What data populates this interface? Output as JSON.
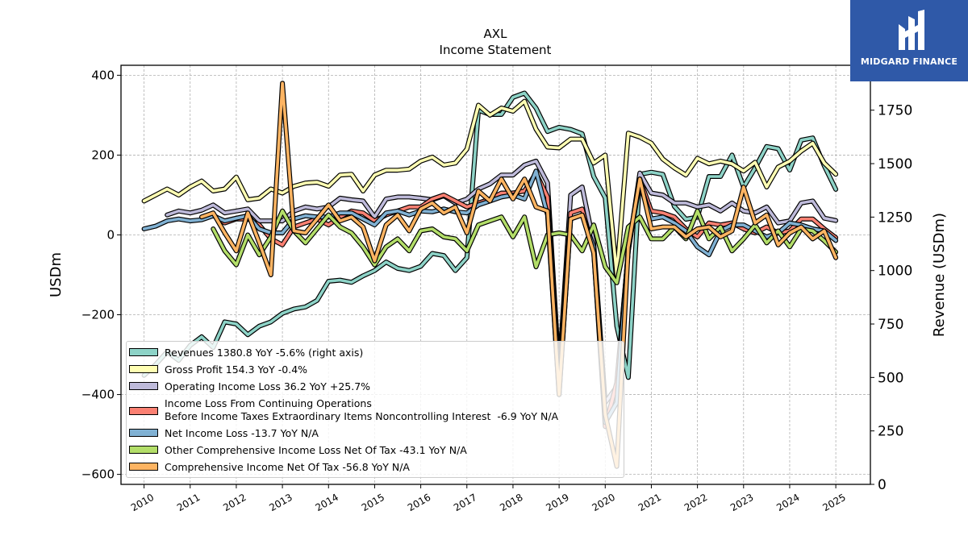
{
  "chart_data": {
    "type": "line",
    "title": "AXL",
    "subtitle": "Income Statement",
    "ylabel": "USDm",
    "ylabel_right": "Revenue (USDm)",
    "ylim": [
      -625,
      425
    ],
    "ylim_right": [
      0,
      1960
    ],
    "yticks": [
      400,
      200,
      0,
      -200,
      -400,
      -600
    ],
    "yticks_right": [
      1750,
      1500,
      1250,
      1000,
      750,
      500,
      250,
      0
    ],
    "xlim": [
      2009.5,
      2025.75
    ],
    "xticks": [
      "2010",
      "2011",
      "2012",
      "2013",
      "2014",
      "2015",
      "2016",
      "2017",
      "2018",
      "2019",
      "2020",
      "2021",
      "2022",
      "2023",
      "2024",
      "2025"
    ],
    "grid": true,
    "legend_position": "lower-left",
    "series": [
      {
        "name": "Revenues  1380.8 YoY -5.6% (right axis)",
        "color": "#8dd3c7",
        "axis": "right",
        "x": [
          2010.0,
          2010.25,
          2010.5,
          2010.75,
          2011.0,
          2011.25,
          2011.5,
          2011.75,
          2012.0,
          2012.25,
          2012.5,
          2012.75,
          2013.0,
          2013.25,
          2013.5,
          2013.75,
          2014.0,
          2014.25,
          2014.5,
          2014.75,
          2015.0,
          2015.25,
          2015.5,
          2015.75,
          2016.0,
          2016.25,
          2016.5,
          2016.75,
          2017.0,
          2017.25,
          2017.5,
          2017.75,
          2018.0,
          2018.25,
          2018.5,
          2018.75,
          2019.0,
          2019.25,
          2019.5,
          2019.75,
          2020.0,
          2020.25,
          2020.5,
          2020.75,
          2021.0,
          2021.25,
          2021.5,
          2021.75,
          2022.0,
          2022.25,
          2022.5,
          2022.75,
          2023.0,
          2023.25,
          2023.5,
          2023.75,
          2024.0,
          2024.25,
          2024.5,
          2024.75,
          2025.0
        ],
        "y": [
          510,
          560,
          620,
          580,
          650,
          690,
          640,
          760,
          750,
          700,
          740,
          760,
          800,
          820,
          830,
          860,
          950,
          955,
          945,
          975,
          1000,
          1040,
          1010,
          1000,
          1020,
          1080,
          1070,
          1000,
          1060,
          1750,
          1730,
          1730,
          1810,
          1830,
          1760,
          1650,
          1670,
          1660,
          1640,
          1440,
          1340,
          740,
          500,
          1450,
          1460,
          1450,
          1300,
          1240,
          1250,
          1440,
          1440,
          1540,
          1390,
          1480,
          1580,
          1570,
          1470,
          1610,
          1620,
          1490,
          1380
        ]
      },
      {
        "name": "Gross Profit  154.3 YoY -0.4%",
        "color": "#ffffb3",
        "axis": "left",
        "x": [
          2010.0,
          2010.25,
          2010.5,
          2010.75,
          2011.0,
          2011.25,
          2011.5,
          2011.75,
          2012.0,
          2012.25,
          2012.5,
          2012.75,
          2013.0,
          2013.25,
          2013.5,
          2013.75,
          2014.0,
          2014.25,
          2014.5,
          2014.75,
          2015.0,
          2015.25,
          2015.5,
          2015.75,
          2016.0,
          2016.25,
          2016.5,
          2016.75,
          2017.0,
          2017.25,
          2017.5,
          2017.75,
          2018.0,
          2018.25,
          2018.5,
          2018.75,
          2019.0,
          2019.25,
          2019.5,
          2019.75,
          2020.0,
          2020.25,
          2020.5,
          2020.75,
          2021.0,
          2021.25,
          2021.5,
          2021.75,
          2022.0,
          2022.25,
          2022.5,
          2022.75,
          2023.0,
          2023.25,
          2023.5,
          2023.75,
          2024.0,
          2024.25,
          2024.5,
          2024.75,
          2025.0
        ],
        "y": [
          85,
          100,
          115,
          100,
          120,
          135,
          110,
          115,
          145,
          88,
          92,
          115,
          105,
          122,
          130,
          132,
          122,
          150,
          152,
          110,
          150,
          162,
          162,
          165,
          185,
          195,
          175,
          180,
          215,
          325,
          300,
          318,
          310,
          335,
          265,
          220,
          218,
          240,
          240,
          180,
          200,
          -100,
          255,
          245,
          230,
          190,
          168,
          150,
          192,
          178,
          185,
          178,
          160,
          182,
          120,
          170,
          185,
          210,
          230,
          180,
          152
        ]
      },
      {
        "name": "Operating Income Loss  36.2 YoY +25.7%",
        "color": "#bebada",
        "axis": "left",
        "x": [
          2010.5,
          2010.75,
          2011.0,
          2011.25,
          2011.5,
          2011.75,
          2012.0,
          2012.25,
          2012.5,
          2012.75,
          2013.0,
          2013.25,
          2013.5,
          2013.75,
          2014.0,
          2014.25,
          2014.5,
          2014.75,
          2015.0,
          2015.25,
          2015.5,
          2015.75,
          2016.0,
          2016.25,
          2016.5,
          2016.75,
          2017.0,
          2017.25,
          2017.5,
          2017.75,
          2018.0,
          2018.25,
          2018.5,
          2018.75,
          2019.0,
          2019.25,
          2019.5,
          2019.75,
          2020.0,
          2020.25,
          2020.5,
          2020.75,
          2021.0,
          2021.25,
          2021.5,
          2021.75,
          2022.0,
          2022.25,
          2022.5,
          2022.75,
          2023.0,
          2023.25,
          2023.5,
          2023.75,
          2024.0,
          2024.25,
          2024.5,
          2024.75,
          2025.0
        ],
        "y": [
          50,
          60,
          55,
          62,
          75,
          55,
          60,
          65,
          35,
          35,
          35,
          60,
          70,
          65,
          70,
          92,
          88,
          85,
          45,
          90,
          95,
          95,
          92,
          88,
          98,
          80,
          90,
          115,
          128,
          150,
          150,
          175,
          185,
          130,
          -345,
          100,
          120,
          -20,
          -420,
          -380,
          -40,
          155,
          105,
          100,
          80,
          80,
          70,
          75,
          60,
          80,
          60,
          55,
          70,
          30,
          35,
          80,
          85,
          42,
          36
        ]
      },
      {
        "name": "Income Loss From Continuing Operations\nBefore Income Taxes Extraordinary Items Noncontrolling Interest  -6.9 YoY N/A",
        "color": "#fb8072",
        "axis": "left",
        "x": [
          2011.5,
          2011.75,
          2012.0,
          2012.25,
          2012.5,
          2012.75,
          2013.0,
          2013.25,
          2013.5,
          2013.75,
          2014.0,
          2014.25,
          2014.5,
          2014.75,
          2015.0,
          2015.25,
          2015.5,
          2015.75,
          2016.0,
          2016.25,
          2016.5,
          2016.75,
          2017.0,
          2017.25,
          2017.5,
          2017.75,
          2018.0,
          2018.25,
          2018.5,
          2018.75,
          2019.0,
          2019.25,
          2019.5,
          2019.75,
          2020.0,
          2020.25,
          2020.5,
          2020.75,
          2021.0,
          2021.25,
          2021.5,
          2021.75,
          2022.0,
          2022.25,
          2022.5,
          2022.75,
          2023.0,
          2023.25,
          2023.5,
          2023.75,
          2024.0,
          2024.25,
          2024.5,
          2024.75,
          2025.0
        ],
        "y": [
          50,
          30,
          40,
          40,
          25,
          -10,
          -25,
          20,
          30,
          40,
          25,
          45,
          60,
          55,
          35,
          50,
          60,
          70,
          70,
          90,
          100,
          85,
          70,
          80,
          90,
          105,
          105,
          110,
          155,
          95,
          -360,
          55,
          65,
          -40,
          -480,
          -370,
          -40,
          140,
          60,
          55,
          45,
          15,
          -5,
          30,
          25,
          30,
          15,
          5,
          20,
          5,
          10,
          40,
          40,
          15,
          -7
        ]
      },
      {
        "name": "Net Income Loss  -13.7 YoY N/A",
        "color": "#80b1d3",
        "axis": "left",
        "x": [
          2010.0,
          2010.25,
          2010.5,
          2010.75,
          2011.0,
          2011.25,
          2011.5,
          2011.75,
          2012.0,
          2012.25,
          2012.5,
          2012.75,
          2013.0,
          2013.25,
          2013.5,
          2013.75,
          2014.0,
          2014.25,
          2014.5,
          2014.75,
          2015.0,
          2015.25,
          2015.5,
          2015.75,
          2016.0,
          2016.25,
          2016.5,
          2016.75,
          2017.0,
          2017.25,
          2017.5,
          2017.75,
          2018.0,
          2018.25,
          2018.5,
          2018.75,
          2019.0,
          2019.25,
          2019.5,
          2019.75,
          2020.0,
          2020.25,
          2020.5,
          2020.75,
          2021.0,
          2021.25,
          2021.5,
          2021.75,
          2022.0,
          2022.25,
          2022.5,
          2022.75,
          2023.0,
          2023.25,
          2023.5,
          2023.75,
          2024.0,
          2024.25,
          2024.5,
          2024.75,
          2025.0
        ],
        "y": [
          15,
          22,
          35,
          40,
          35,
          38,
          48,
          35,
          42,
          48,
          15,
          5,
          5,
          40,
          48,
          45,
          45,
          55,
          55,
          40,
          25,
          55,
          60,
          50,
          60,
          58,
          65,
          58,
          55,
          75,
          85,
          95,
          100,
          90,
          160,
          50,
          -400,
          40,
          50,
          -30,
          -470,
          -420,
          -30,
          130,
          40,
          45,
          30,
          10,
          -30,
          -50,
          10,
          25,
          25,
          10,
          -5,
          5,
          30,
          25,
          15,
          10,
          -14
        ]
      },
      {
        "name": "Other Comprehensive Income Loss Net Of Tax  -43.1 YoY N/A",
        "color": "#b3de69",
        "axis": "left",
        "x": [
          2011.5,
          2011.75,
          2012.0,
          2012.25,
          2012.5,
          2012.75,
          2013.0,
          2013.25,
          2013.5,
          2013.75,
          2014.0,
          2014.25,
          2014.5,
          2014.75,
          2015.0,
          2015.25,
          2015.5,
          2015.75,
          2016.0,
          2016.25,
          2016.5,
          2016.75,
          2017.0,
          2017.25,
          2017.5,
          2017.75,
          2018.0,
          2018.25,
          2018.5,
          2018.75,
          2019.0,
          2019.25,
          2019.5,
          2019.75,
          2020.0,
          2020.25,
          2020.5,
          2020.75,
          2021.0,
          2021.25,
          2021.5,
          2021.75,
          2022.0,
          2022.25,
          2022.5,
          2022.75,
          2023.0,
          2023.25,
          2023.5,
          2023.75,
          2024.0,
          2024.25,
          2024.5,
          2024.75,
          2025.0
        ],
        "y": [
          15,
          -40,
          -75,
          0,
          -50,
          -5,
          60,
          10,
          -20,
          15,
          50,
          20,
          5,
          -30,
          -75,
          -30,
          -10,
          -40,
          10,
          15,
          -5,
          -10,
          -40,
          25,
          35,
          45,
          -5,
          45,
          -80,
          0,
          5,
          0,
          -40,
          25,
          -80,
          -120,
          20,
          45,
          -10,
          -10,
          20,
          -10,
          60,
          -10,
          20,
          -40,
          -10,
          25,
          -20,
          10,
          -30,
          15,
          10,
          -15,
          -43
        ]
      },
      {
        "name": "Comprehensive Income Net Of Tax  -56.8 YoY N/A",
        "color": "#fdb462",
        "axis": "left",
        "x": [
          2011.25,
          2011.5,
          2011.75,
          2012.0,
          2012.25,
          2012.5,
          2012.75,
          2013.0,
          2013.25,
          2013.5,
          2013.75,
          2014.0,
          2014.25,
          2014.5,
          2014.75,
          2015.0,
          2015.25,
          2015.5,
          2015.75,
          2016.0,
          2016.25,
          2016.5,
          2016.75,
          2017.0,
          2017.25,
          2017.5,
          2017.75,
          2018.0,
          2018.25,
          2018.5,
          2018.75,
          2019.0,
          2019.25,
          2019.5,
          2019.75,
          2020.0,
          2020.25,
          2020.5,
          2020.75,
          2021.0,
          2021.25,
          2021.5,
          2021.75,
          2022.0,
          2022.25,
          2022.5,
          2022.75,
          2023.0,
          2023.25,
          2023.5,
          2023.75,
          2024.0,
          2024.25,
          2024.5,
          2024.75,
          2025.0
        ],
        "y": [
          45,
          55,
          5,
          -40,
          55,
          -20,
          -100,
          380,
          10,
          5,
          40,
          75,
          35,
          45,
          20,
          -65,
          25,
          50,
          10,
          65,
          80,
          55,
          70,
          5,
          110,
          85,
          140,
          90,
          140,
          70,
          60,
          -400,
          40,
          50,
          -45,
          -450,
          -580,
          -30,
          140,
          15,
          20,
          20,
          -5,
          15,
          20,
          -5,
          10,
          120,
          30,
          50,
          -25,
          5,
          20,
          -10,
          10,
          -57
        ]
      }
    ]
  },
  "brand": {
    "name": "MIDGARD FINANCE"
  }
}
